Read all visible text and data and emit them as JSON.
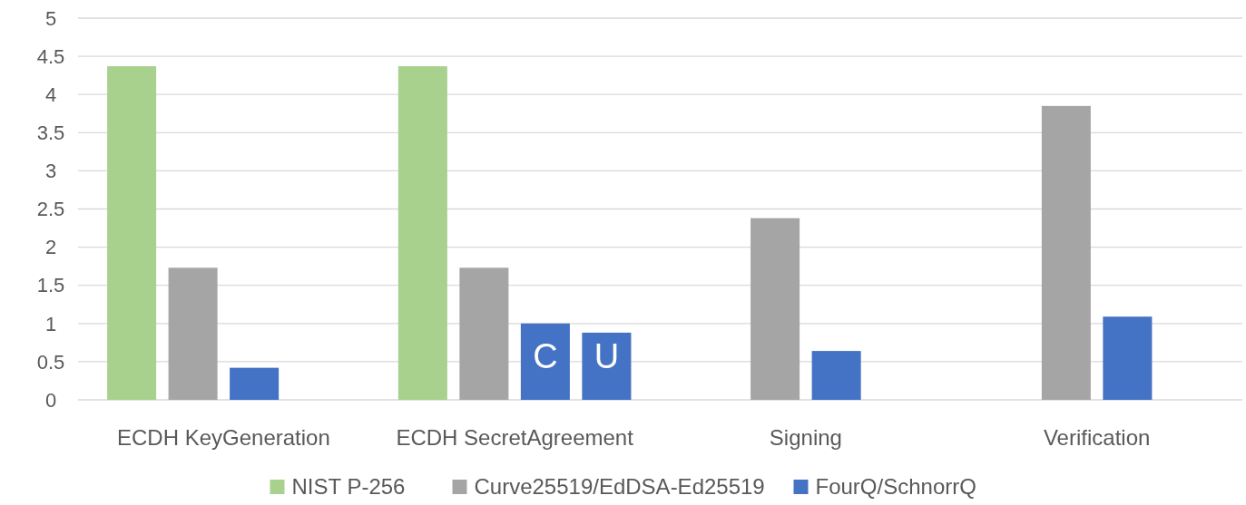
{
  "chart_data": {
    "type": "bar",
    "categories": [
      "ECDH KeyGeneration",
      "ECDH SecretAgreement",
      "Signing",
      "Verification"
    ],
    "series": [
      {
        "name": "NIST P-256",
        "color": "#a9d18e",
        "values": [
          4.37,
          4.37,
          null,
          null
        ]
      },
      {
        "name": "Curve25519/EdDSA-Ed25519",
        "color": "#a5a5a5",
        "values": [
          1.73,
          1.73,
          2.38,
          3.85
        ]
      },
      {
        "name": "FourQ/SchnorrQ",
        "color": "#4472c4",
        "values": [
          0.42,
          1.0,
          0.64,
          1.09
        ]
      },
      {
        "color": "#4472c4",
        "values": [
          null,
          0.88,
          null,
          null
        ]
      }
    ],
    "ylim": [
      0,
      5
    ],
    "yticks": [
      0,
      0.5,
      1,
      1.5,
      2,
      2.5,
      3,
      3.5,
      4,
      4.5,
      5
    ],
    "grid": "y",
    "legend": "bottom",
    "annotations": [
      "C",
      "U"
    ]
  }
}
